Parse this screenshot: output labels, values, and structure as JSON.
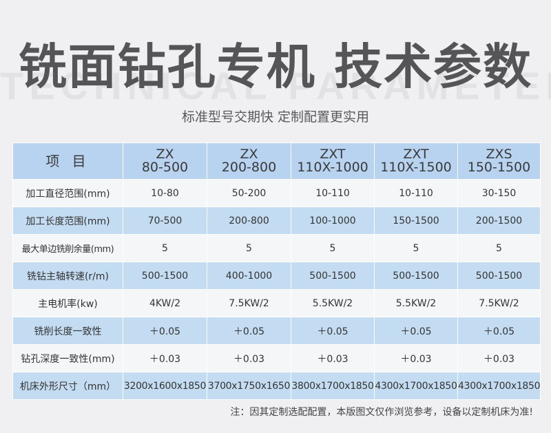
{
  "title": "铣面钻孔专机 技术参数",
  "bg_watermark": "TECHNICAL PARAMETER",
  "subtitle": "标准型号交期快 定制配置更实用",
  "table": {
    "header_label": "项 目",
    "models": [
      {
        "line1": "ZX",
        "line2": "80-500"
      },
      {
        "line1": "ZX",
        "line2": "200-800"
      },
      {
        "line1": "ZXT",
        "line2": "110X-1000"
      },
      {
        "line1": "ZXT",
        "line2": "110X-1500"
      },
      {
        "line1": "ZXS",
        "line2": "150-1500"
      }
    ],
    "rows": [
      {
        "label": "加工直径范围(mm)",
        "values": [
          "10-80",
          "50-200",
          "10-110",
          "10-110",
          "30-150"
        ]
      },
      {
        "label": "加工长度范围(mm)",
        "values": [
          "70-500",
          "200-800",
          "100-1000",
          "150-1500",
          "200-1500"
        ]
      },
      {
        "label": "最大单边铣削余量(mm)",
        "values": [
          "5",
          "5",
          "5",
          "5",
          "5"
        ]
      },
      {
        "label": "铣钻主轴转速(r/m)",
        "values": [
          "500-1500",
          "400-1000",
          "500-1500",
          "500-1500",
          "500-1500"
        ]
      },
      {
        "label": "主电机率(kw)",
        "values": [
          "4KW/2",
          "7.5KW/2",
          "5.5KW/2",
          "5.5KW/2",
          "7.5KW/2"
        ]
      },
      {
        "label": "铣削长度一致性",
        "values": [
          "＋0.05",
          "＋0.05",
          "＋0.05",
          "＋0.05",
          "＋0.05"
        ]
      },
      {
        "label": "钻孔深度一致性(mm)",
        "values": [
          "＋0.03",
          "＋0.03",
          "＋0.03",
          "＋0.03",
          "＋0.03"
        ]
      },
      {
        "label": "机床外形尺寸（mm）",
        "values": [
          "3200x1600x1850",
          "3700x1750x1650",
          "3800x1700x1850",
          "4300x1700x1850",
          "4300x1700x1850"
        ]
      }
    ]
  },
  "note": "注：因其定制选配配置，本版图文仅作浏览参考，设备以定制机床为准!"
}
